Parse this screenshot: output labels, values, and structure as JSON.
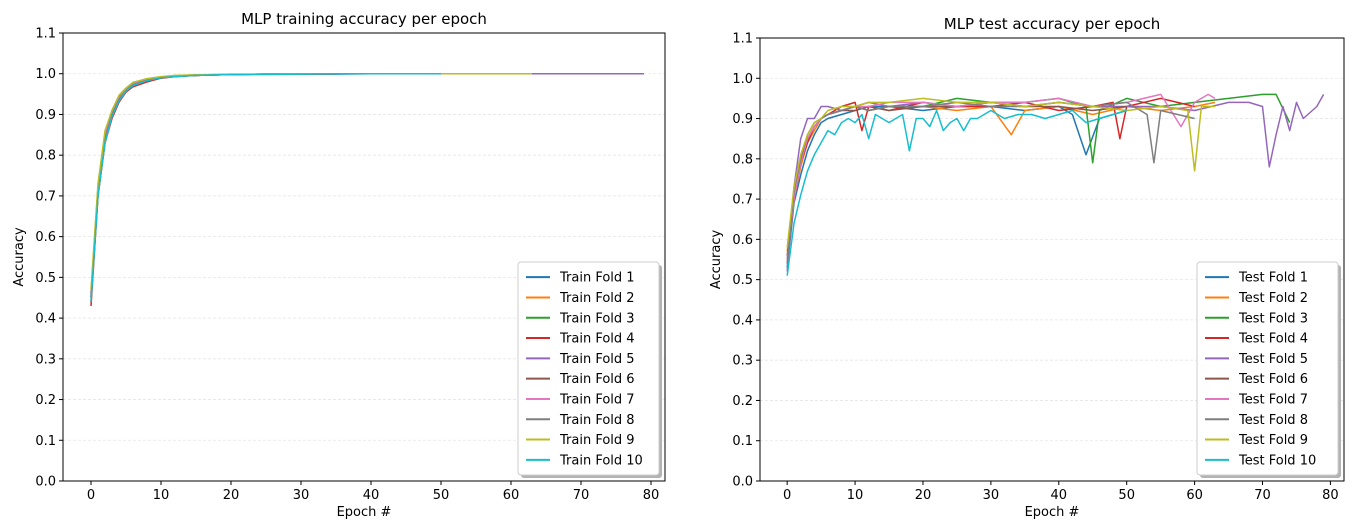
{
  "chart_data": [
    {
      "type": "line",
      "title": "MLP training accuracy per epoch",
      "xlabel": "Epoch #",
      "ylabel": "Accuracy",
      "xlim": [
        -4,
        82
      ],
      "ylim": [
        0.0,
        1.1
      ],
      "xticks": [
        "0",
        "10",
        "20",
        "30",
        "40",
        "50",
        "60",
        "70",
        "80"
      ],
      "yticks": [
        "0.0",
        "0.1",
        "0.2",
        "0.3",
        "0.4",
        "0.5",
        "0.6",
        "0.7",
        "0.8",
        "0.9",
        "1.0",
        "1.1"
      ],
      "grid": "horizontal",
      "legend_position": "lower-right",
      "series": [
        {
          "name": "Train Fold 1",
          "color": "#1f77b4",
          "x": [
            0,
            1,
            2,
            3,
            4,
            5,
            6,
            8,
            10,
            12,
            15,
            20,
            25,
            30,
            35,
            40,
            45,
            50,
            55,
            60
          ],
          "y": [
            0.45,
            0.72,
            0.84,
            0.9,
            0.94,
            0.96,
            0.977,
            0.985,
            0.991,
            0.994,
            0.996,
            0.998,
            0.999,
            0.999,
            0.999,
            1.0,
            1.0,
            1.0,
            1.0,
            1.0
          ]
        },
        {
          "name": "Train Fold 2",
          "color": "#ff7f0e",
          "x": [
            0,
            1,
            2,
            3,
            4,
            5,
            6,
            8,
            10,
            12,
            15,
            20,
            25,
            30,
            35,
            40,
            45,
            50,
            55,
            60,
            63
          ],
          "y": [
            0.44,
            0.7,
            0.83,
            0.9,
            0.935,
            0.955,
            0.97,
            0.982,
            0.99,
            0.993,
            0.996,
            0.998,
            0.999,
            0.999,
            1.0,
            1.0,
            1.0,
            1.0,
            1.0,
            1.0,
            1.0
          ]
        },
        {
          "name": "Train Fold 3",
          "color": "#2ca02c",
          "x": [
            0,
            1,
            2,
            3,
            4,
            5,
            6,
            8,
            10,
            12,
            15,
            20,
            25,
            30,
            35,
            40,
            45,
            50,
            55,
            60,
            63
          ],
          "y": [
            0.46,
            0.72,
            0.85,
            0.91,
            0.945,
            0.962,
            0.977,
            0.986,
            0.992,
            0.995,
            0.997,
            0.998,
            0.999,
            1.0,
            1.0,
            1.0,
            1.0,
            1.0,
            1.0,
            1.0,
            1.0
          ]
        },
        {
          "name": "Train Fold 4",
          "color": "#d62728",
          "x": [
            0,
            1,
            2,
            3,
            4,
            5,
            6,
            8,
            10,
            12,
            15,
            20,
            25,
            30,
            35,
            40,
            45,
            50
          ],
          "y": [
            0.43,
            0.7,
            0.83,
            0.89,
            0.93,
            0.955,
            0.968,
            0.98,
            0.989,
            0.993,
            0.996,
            0.998,
            0.999,
            0.999,
            1.0,
            1.0,
            1.0,
            1.0
          ]
        },
        {
          "name": "Train Fold 5",
          "color": "#9467bd",
          "x": [
            0,
            1,
            2,
            3,
            4,
            5,
            6,
            8,
            10,
            12,
            15,
            20,
            25,
            30,
            35,
            40,
            45,
            50,
            55,
            60,
            65,
            70,
            75,
            79
          ],
          "y": [
            0.45,
            0.71,
            0.84,
            0.9,
            0.935,
            0.958,
            0.972,
            0.984,
            0.991,
            0.994,
            0.996,
            0.998,
            0.999,
            0.999,
            1.0,
            1.0,
            1.0,
            1.0,
            1.0,
            1.0,
            1.0,
            1.0,
            1.0,
            1.0
          ]
        },
        {
          "name": "Train Fold 6",
          "color": "#8c564b",
          "x": [
            0,
            1,
            2,
            3,
            4,
            5,
            6,
            8,
            10,
            12,
            15,
            20,
            25,
            30,
            35,
            40,
            45,
            50
          ],
          "y": [
            0.44,
            0.71,
            0.84,
            0.9,
            0.938,
            0.958,
            0.972,
            0.984,
            0.99,
            0.994,
            0.996,
            0.998,
            0.999,
            0.999,
            1.0,
            1.0,
            1.0,
            1.0
          ]
        },
        {
          "name": "Train Fold 7",
          "color": "#e377c2",
          "x": [
            0,
            1,
            2,
            3,
            4,
            5,
            6,
            8,
            10,
            12,
            15,
            20,
            25,
            30,
            35,
            40,
            45,
            50
          ],
          "y": [
            0.46,
            0.72,
            0.85,
            0.905,
            0.94,
            0.96,
            0.975,
            0.985,
            0.991,
            0.994,
            0.997,
            0.998,
            0.999,
            1.0,
            1.0,
            1.0,
            1.0,
            1.0
          ]
        },
        {
          "name": "Train Fold 8",
          "color": "#7f7f7f",
          "x": [
            0,
            1,
            2,
            3,
            4,
            5,
            6,
            8,
            10,
            12,
            15,
            20,
            25,
            30,
            35,
            40,
            45,
            50
          ],
          "y": [
            0.45,
            0.71,
            0.84,
            0.9,
            0.937,
            0.958,
            0.973,
            0.984,
            0.99,
            0.994,
            0.996,
            0.998,
            0.999,
            0.999,
            1.0,
            1.0,
            1.0,
            1.0
          ]
        },
        {
          "name": "Train Fold 9",
          "color": "#bcbd22",
          "x": [
            0,
            1,
            2,
            3,
            4,
            5,
            6,
            8,
            10,
            12,
            15,
            20,
            25,
            30,
            35,
            40,
            45,
            50,
            55,
            60,
            63
          ],
          "y": [
            0.47,
            0.73,
            0.86,
            0.91,
            0.947,
            0.965,
            0.979,
            0.988,
            0.993,
            0.996,
            0.997,
            0.999,
            0.999,
            1.0,
            1.0,
            1.0,
            1.0,
            1.0,
            1.0,
            1.0,
            1.0
          ]
        },
        {
          "name": "Train Fold 10",
          "color": "#17becf",
          "x": [
            0,
            1,
            2,
            3,
            4,
            5,
            6,
            8,
            10,
            12,
            15,
            20,
            25,
            30,
            35,
            40,
            45,
            50
          ],
          "y": [
            0.44,
            0.7,
            0.83,
            0.895,
            0.933,
            0.957,
            0.971,
            0.983,
            0.99,
            0.993,
            0.996,
            0.998,
            0.998,
            0.999,
            1.0,
            1.0,
            1.0,
            1.0
          ]
        }
      ]
    },
    {
      "type": "line",
      "title": "MLP test accuracy per epoch",
      "xlabel": "Epoch #",
      "ylabel": "Accuracy",
      "xlim": [
        -4,
        82
      ],
      "ylim": [
        0.0,
        1.1
      ],
      "xticks": [
        "0",
        "10",
        "20",
        "30",
        "40",
        "50",
        "60",
        "70",
        "80"
      ],
      "yticks": [
        "0.0",
        "0.1",
        "0.2",
        "0.3",
        "0.4",
        "0.5",
        "0.6",
        "0.7",
        "0.8",
        "0.9",
        "1.0",
        "1.1"
      ],
      "grid": "horizontal",
      "legend_position": "lower-right",
      "series": [
        {
          "name": "Test Fold 1",
          "color": "#1f77b4",
          "x": [
            0,
            1,
            2,
            3,
            4,
            5,
            6,
            8,
            10,
            12,
            15,
            20,
            25,
            30,
            35,
            40,
            42,
            44,
            46,
            50
          ],
          "y": [
            0.53,
            0.69,
            0.76,
            0.82,
            0.86,
            0.89,
            0.9,
            0.91,
            0.92,
            0.93,
            0.93,
            0.92,
            0.93,
            0.93,
            0.92,
            0.93,
            0.91,
            0.81,
            0.9,
            0.92
          ]
        },
        {
          "name": "Test Fold 2",
          "color": "#ff7f0e",
          "x": [
            0,
            1,
            2,
            3,
            4,
            5,
            6,
            8,
            10,
            12,
            15,
            20,
            25,
            30,
            33,
            35,
            40,
            45,
            50,
            55,
            60,
            63
          ],
          "y": [
            0.57,
            0.7,
            0.78,
            0.84,
            0.87,
            0.9,
            0.91,
            0.92,
            0.93,
            0.92,
            0.93,
            0.93,
            0.92,
            0.93,
            0.86,
            0.92,
            0.93,
            0.91,
            0.93,
            0.92,
            0.93,
            0.94
          ]
        },
        {
          "name": "Test Fold 3",
          "color": "#2ca02c",
          "x": [
            0,
            1,
            2,
            3,
            4,
            5,
            6,
            8,
            10,
            12,
            15,
            20,
            25,
            30,
            35,
            40,
            44,
            45,
            46,
            50,
            55,
            60,
            65,
            70,
            72,
            74
          ],
          "y": [
            0.55,
            0.72,
            0.8,
            0.85,
            0.88,
            0.9,
            0.91,
            0.92,
            0.93,
            0.92,
            0.93,
            0.93,
            0.95,
            0.94,
            0.94,
            0.95,
            0.93,
            0.79,
            0.92,
            0.95,
            0.93,
            0.94,
            0.95,
            0.96,
            0.96,
            0.89
          ]
        },
        {
          "name": "Test Fold 4",
          "color": "#d62728",
          "x": [
            0,
            1,
            2,
            3,
            4,
            5,
            6,
            8,
            10,
            11,
            12,
            15,
            20,
            25,
            30,
            35,
            40,
            45,
            48,
            49,
            50,
            55,
            60
          ],
          "y": [
            0.54,
            0.7,
            0.79,
            0.84,
            0.88,
            0.9,
            0.91,
            0.93,
            0.94,
            0.87,
            0.93,
            0.92,
            0.94,
            0.93,
            0.93,
            0.94,
            0.92,
            0.93,
            0.94,
            0.85,
            0.93,
            0.95,
            0.93
          ]
        },
        {
          "name": "Test Fold 5",
          "color": "#9467bd",
          "x": [
            0,
            1,
            2,
            3,
            4,
            5,
            6,
            8,
            10,
            12,
            15,
            20,
            25,
            30,
            35,
            40,
            45,
            50,
            55,
            60,
            65,
            68,
            70,
            71,
            72,
            73,
            74,
            75,
            76,
            78,
            79
          ],
          "y": [
            0.52,
            0.73,
            0.85,
            0.9,
            0.9,
            0.93,
            0.93,
            0.92,
            0.93,
            0.94,
            0.93,
            0.94,
            0.93,
            0.94,
            0.93,
            0.94,
            0.93,
            0.93,
            0.93,
            0.92,
            0.94,
            0.94,
            0.93,
            0.78,
            0.86,
            0.93,
            0.87,
            0.94,
            0.9,
            0.93,
            0.96
          ]
        },
        {
          "name": "Test Fold 6",
          "color": "#8c564b",
          "x": [
            0,
            1,
            2,
            3,
            4,
            5,
            6,
            8,
            10,
            12,
            15,
            20,
            25,
            30,
            35,
            40,
            45,
            50
          ],
          "y": [
            0.56,
            0.71,
            0.8,
            0.85,
            0.88,
            0.9,
            0.91,
            0.92,
            0.92,
            0.93,
            0.92,
            0.93,
            0.93,
            0.94,
            0.93,
            0.93,
            0.92,
            0.93
          ]
        },
        {
          "name": "Test Fold 7",
          "color": "#e377c2",
          "x": [
            0,
            1,
            2,
            3,
            4,
            5,
            6,
            8,
            10,
            12,
            15,
            20,
            25,
            30,
            35,
            40,
            45,
            50,
            55,
            58,
            60,
            62,
            63
          ],
          "y": [
            0.55,
            0.7,
            0.79,
            0.85,
            0.88,
            0.9,
            0.91,
            0.92,
            0.93,
            0.93,
            0.94,
            0.94,
            0.93,
            0.94,
            0.94,
            0.95,
            0.93,
            0.94,
            0.96,
            0.88,
            0.94,
            0.96,
            0.95
          ]
        },
        {
          "name": "Test Fold 8",
          "color": "#7f7f7f",
          "x": [
            0,
            1,
            2,
            3,
            4,
            5,
            6,
            8,
            10,
            12,
            15,
            20,
            25,
            30,
            35,
            40,
            45,
            50,
            53,
            54,
            55,
            60
          ],
          "y": [
            0.54,
            0.72,
            0.8,
            0.86,
            0.89,
            0.9,
            0.91,
            0.92,
            0.93,
            0.92,
            0.93,
            0.93,
            0.94,
            0.93,
            0.93,
            0.94,
            0.93,
            0.94,
            0.91,
            0.79,
            0.92,
            0.9
          ]
        },
        {
          "name": "Test Fold 9",
          "color": "#bcbd22",
          "x": [
            0,
            1,
            2,
            3,
            4,
            5,
            6,
            8,
            10,
            12,
            15,
            20,
            25,
            30,
            35,
            40,
            45,
            50,
            55,
            59,
            60,
            61,
            63
          ],
          "y": [
            0.58,
            0.73,
            0.81,
            0.86,
            0.89,
            0.9,
            0.92,
            0.93,
            0.93,
            0.94,
            0.94,
            0.95,
            0.94,
            0.94,
            0.93,
            0.94,
            0.93,
            0.92,
            0.93,
            0.92,
            0.77,
            0.93,
            0.93
          ]
        },
        {
          "name": "Test Fold 10",
          "color": "#17becf",
          "x": [
            0,
            1,
            2,
            3,
            4,
            5,
            6,
            7,
            8,
            9,
            10,
            11,
            12,
            13,
            14,
            15,
            16,
            17,
            18,
            19,
            20,
            21,
            22,
            23,
            24,
            25,
            26,
            27,
            28,
            29,
            30,
            32,
            34,
            36,
            38,
            40,
            42,
            44,
            46,
            48,
            50
          ],
          "y": [
            0.51,
            0.64,
            0.71,
            0.77,
            0.81,
            0.84,
            0.87,
            0.86,
            0.89,
            0.9,
            0.89,
            0.91,
            0.85,
            0.91,
            0.9,
            0.89,
            0.9,
            0.91,
            0.82,
            0.9,
            0.9,
            0.88,
            0.92,
            0.87,
            0.89,
            0.9,
            0.87,
            0.9,
            0.9,
            0.91,
            0.92,
            0.9,
            0.91,
            0.91,
            0.9,
            0.91,
            0.92,
            0.89,
            0.9,
            0.91,
            0.92
          ]
        }
      ]
    }
  ]
}
